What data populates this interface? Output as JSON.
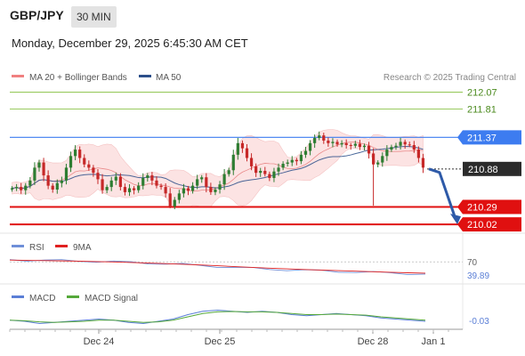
{
  "header": {
    "symbol": "GBP/JPY",
    "timeframe": "30 MIN",
    "datetime": "Monday, December 29, 2025 6:45:30 AM CET"
  },
  "legend": {
    "bollinger": "MA 20 + Bollinger Bands",
    "ma50": "MA 50",
    "credit": "Research © 2025 Trading Central",
    "rsi": "RSI",
    "rsi_ma": "9MA",
    "macd": "MACD",
    "macd_signal": "MACD Signal"
  },
  "colors": {
    "candle_up": "#2e7d32",
    "candle_down": "#c62828",
    "resistance_green": "#8bc34a",
    "pivot_blue": "#3d7cf0",
    "support_red": "#e01010",
    "current_price": "#333333",
    "ma50": "#2c4f8a",
    "bollinger_fill": "#fbd9d9",
    "ma20": "#e57373",
    "rsi": "#6f8fd8",
    "rsi_ma": "#e02020",
    "macd": "#5b7fd6",
    "macd_signal": "#55a83a"
  },
  "chart_data": [
    {
      "type": "candlestick",
      "title": "GBP/JPY 30 MIN",
      "x_ticks": [
        "Dec 24",
        "Dec 25",
        "Dec 28",
        "Jan 1"
      ],
      "ylim": [
        209.98,
        212.12
      ],
      "levels": [
        {
          "label": "212.07",
          "value": 212.07,
          "kind": "resistance"
        },
        {
          "label": "211.81",
          "value": 211.81,
          "kind": "resistance"
        },
        {
          "label": "211.37",
          "value": 211.37,
          "kind": "pivot"
        },
        {
          "label": "210.88",
          "value": 210.88,
          "kind": "current"
        },
        {
          "label": "210.29",
          "value": 210.29,
          "kind": "support"
        },
        {
          "label": "210.02",
          "value": 210.02,
          "kind": "support"
        }
      ],
      "projection": {
        "from": 210.88,
        "to": 210.02,
        "direction": "down"
      },
      "price_path": [
        210.58,
        210.6,
        210.55,
        210.62,
        210.7,
        210.9,
        210.98,
        210.78,
        210.62,
        210.56,
        210.66,
        210.7,
        210.9,
        211.08,
        211.18,
        211.05,
        210.95,
        210.9,
        210.82,
        210.72,
        210.55,
        210.6,
        210.7,
        210.76,
        210.6,
        210.52,
        210.58,
        210.55,
        210.62,
        210.74,
        210.78,
        210.7,
        210.62,
        210.6,
        210.5,
        210.3,
        210.4,
        210.5,
        210.58,
        210.54,
        210.62,
        210.72,
        210.75,
        210.6,
        210.52,
        210.56,
        210.64,
        210.8,
        210.86,
        211.1,
        211.28,
        211.2,
        211.05,
        210.92,
        210.82,
        210.85,
        210.8,
        210.74,
        210.84,
        210.9,
        210.96,
        210.98,
        211.02,
        211.0,
        211.1,
        211.16,
        211.28,
        211.36,
        211.4,
        211.32,
        211.28,
        211.3,
        211.26,
        211.28,
        211.25,
        211.24,
        211.27,
        211.22,
        211.24,
        211.12,
        210.95,
        210.98,
        211.08,
        211.18,
        211.22,
        211.24,
        211.3,
        211.26,
        211.25,
        211.18,
        211.05,
        210.9
      ],
      "overlays": [
        "MA 20 + Bollinger Bands",
        "MA 50"
      ]
    },
    {
      "type": "line",
      "title": "RSI",
      "series": [
        {
          "name": "RSI",
          "values": [
            50.5,
            50.2,
            50.0,
            49.8,
            49.6,
            49.2,
            48.9,
            48.5,
            48.0,
            47.5,
            47.0,
            46.2,
            45.5,
            44.8,
            44.0,
            43.5,
            43.0,
            42.6,
            42.2,
            41.8,
            41.4,
            41.0,
            40.6,
            40.2,
            39.89
          ]
        },
        {
          "name": "9MA",
          "values": [
            50.2,
            50.0,
            49.8,
            49.6,
            49.4,
            49.1,
            48.8,
            48.4,
            48.0,
            47.6,
            47.1,
            46.6,
            46.0,
            45.4,
            44.8,
            44.2,
            43.7,
            43.2,
            42.8,
            42.4,
            42.0,
            41.6,
            41.2,
            40.8,
            40.5
          ]
        }
      ],
      "ref_level": "70",
      "last_value": "39.89"
    },
    {
      "type": "line",
      "title": "MACD",
      "series": [
        {
          "name": "MACD",
          "values": [
            -0.02,
            -0.03,
            -0.05,
            -0.04,
            -0.03,
            -0.02,
            -0.01,
            -0.02,
            -0.04,
            -0.05,
            -0.03,
            -0.01,
            0.03,
            0.06,
            0.07,
            0.06,
            0.05,
            0.06,
            0.05,
            0.03,
            0.02,
            0.03,
            0.04,
            0.03,
            0.02,
            0.0,
            -0.01,
            -0.02,
            -0.03
          ]
        },
        {
          "name": "MACD Signal",
          "values": [
            -0.02,
            -0.025,
            -0.035,
            -0.04,
            -0.035,
            -0.03,
            -0.02,
            -0.02,
            -0.03,
            -0.04,
            -0.035,
            -0.02,
            0.01,
            0.04,
            0.055,
            0.058,
            0.055,
            0.055,
            0.05,
            0.04,
            0.03,
            0.03,
            0.035,
            0.03,
            0.025,
            0.01,
            0.0,
            -0.01,
            -0.02
          ]
        }
      ],
      "last_value": "-0.03"
    }
  ]
}
